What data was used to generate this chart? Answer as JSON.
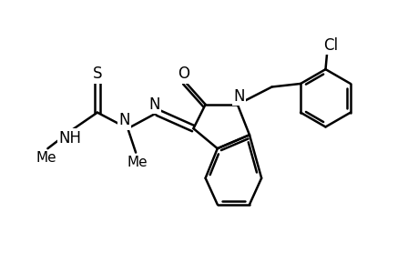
{
  "background_color": "#ffffff",
  "line_color": "#000000",
  "line_width": 1.8,
  "font_size": 12,
  "figsize": [
    4.6,
    3.0
  ],
  "dpi": 100,
  "xlim": [
    0.0,
    5.2
  ],
  "ylim": [
    0.2,
    3.2
  ]
}
